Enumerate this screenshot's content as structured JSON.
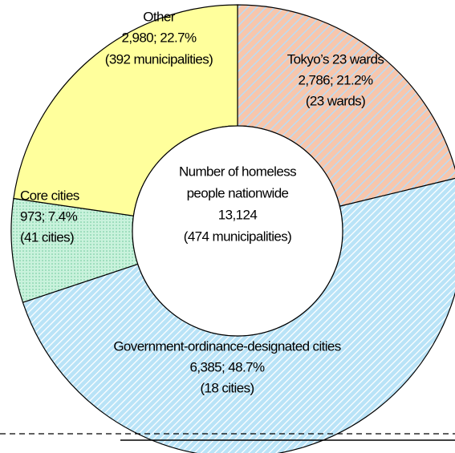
{
  "chart_data": {
    "type": "pie",
    "donut": true,
    "categories": [
      "Tokyo’s 23 wards",
      "Government-ordinance-designated cities",
      "Core cities",
      "Other"
    ],
    "values": [
      2786,
      6385,
      973,
      2980
    ],
    "value_labels": [
      "2,786; 21.2%",
      "6,385; 48.7%",
      "973; 7.4%",
      "2,980; 22.7%"
    ],
    "details": [
      "(23 wards)",
      "(18 cities)",
      "(41 cities)",
      "(392 municipalities)"
    ],
    "colors": [
      "#f7c6ac",
      "#b9e3f7",
      "#c9f2dc",
      "#ffff9c"
    ],
    "center_text": [
      "Number of homeless",
      "people nationwide",
      "13,124",
      "(474 municipalities)"
    ]
  }
}
